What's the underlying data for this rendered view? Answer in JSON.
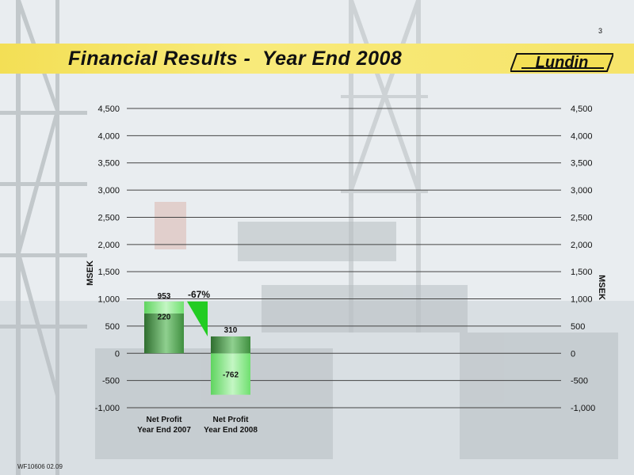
{
  "page": {
    "title": "Financial Results -  Year End 2008",
    "page_number": "3",
    "footer_code": "WF10606 02.09",
    "logo_text": "Lundin",
    "colors": {
      "banner": "#f3df55",
      "bar_dark": "#2f6e2f",
      "bar_light": "#7be07b",
      "connector": "#22cc22"
    }
  },
  "chart_data": {
    "type": "bar",
    "categories": [
      "Net Profit\nYear End 2007",
      "Net Profit\nYear End 2008"
    ],
    "category_lines": [
      [
        "Net Profit",
        "Year End 2007"
      ],
      [
        "Net Profit",
        "Year End 2008"
      ]
    ],
    "ylabel": "MSEK",
    "ylabel_right": "MSEK",
    "ylim": [
      -1000,
      4500
    ],
    "yticks": [
      -1000,
      -500,
      0,
      500,
      1000,
      1500,
      2000,
      2500,
      3000,
      3500,
      4000,
      4500
    ],
    "ytick_labels": [
      "-1,000",
      "-500",
      "0",
      "500",
      "1,000",
      "1,500",
      "2,000",
      "2,500",
      "3,000",
      "3,500",
      "4,000",
      "4,500"
    ],
    "grid": true,
    "bars": [
      {
        "total": 953,
        "total_label": "953",
        "segments": [
          {
            "from": 0,
            "to": 733,
            "label": ""
          },
          {
            "from": 733,
            "to": 953,
            "label": "220"
          }
        ]
      },
      {
        "total": 310,
        "total_label": "310",
        "segments": [
          {
            "from": 0,
            "to": 310,
            "label": ""
          },
          {
            "from": 0,
            "to": -762,
            "label": "-762"
          }
        ]
      }
    ],
    "change_label": "-67%"
  }
}
